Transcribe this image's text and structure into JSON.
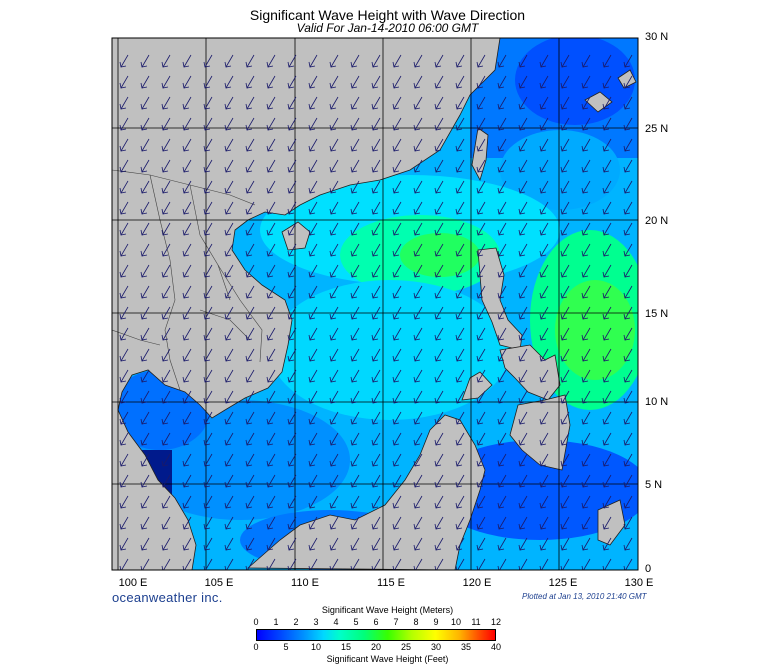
{
  "title": "Significant Wave Height with Wave Direction",
  "subtitle": "Valid For Jan-14-2010 06:00 GMT",
  "map": {
    "lon_labels": [
      "100 E",
      "105 E",
      "110 E",
      "115 E",
      "120 E",
      "125 E",
      "130 E"
    ],
    "lat_labels": [
      "30 N",
      "25 N",
      "20 N",
      "15 N",
      "10 N",
      "5 N",
      "0"
    ],
    "land_color": "#c0c0c0",
    "ocean_base_color": "#00aaff",
    "wave_direction": "toward southwest"
  },
  "brand": "oceanweather inc.",
  "plotted": "Plotted at Jan 13, 2010 21:40 GMT",
  "colorbar": {
    "title_meters": "Significant Wave Height (Meters)",
    "title_feet": "Significant Wave Height (Feet)",
    "meter_ticks": [
      "0",
      "1",
      "2",
      "3",
      "4",
      "5",
      "6",
      "7",
      "8",
      "9",
      "10",
      "11",
      "12"
    ],
    "feet_ticks": [
      "0",
      "5",
      "10",
      "15",
      "20",
      "25",
      "30",
      "35",
      "40"
    ]
  }
}
